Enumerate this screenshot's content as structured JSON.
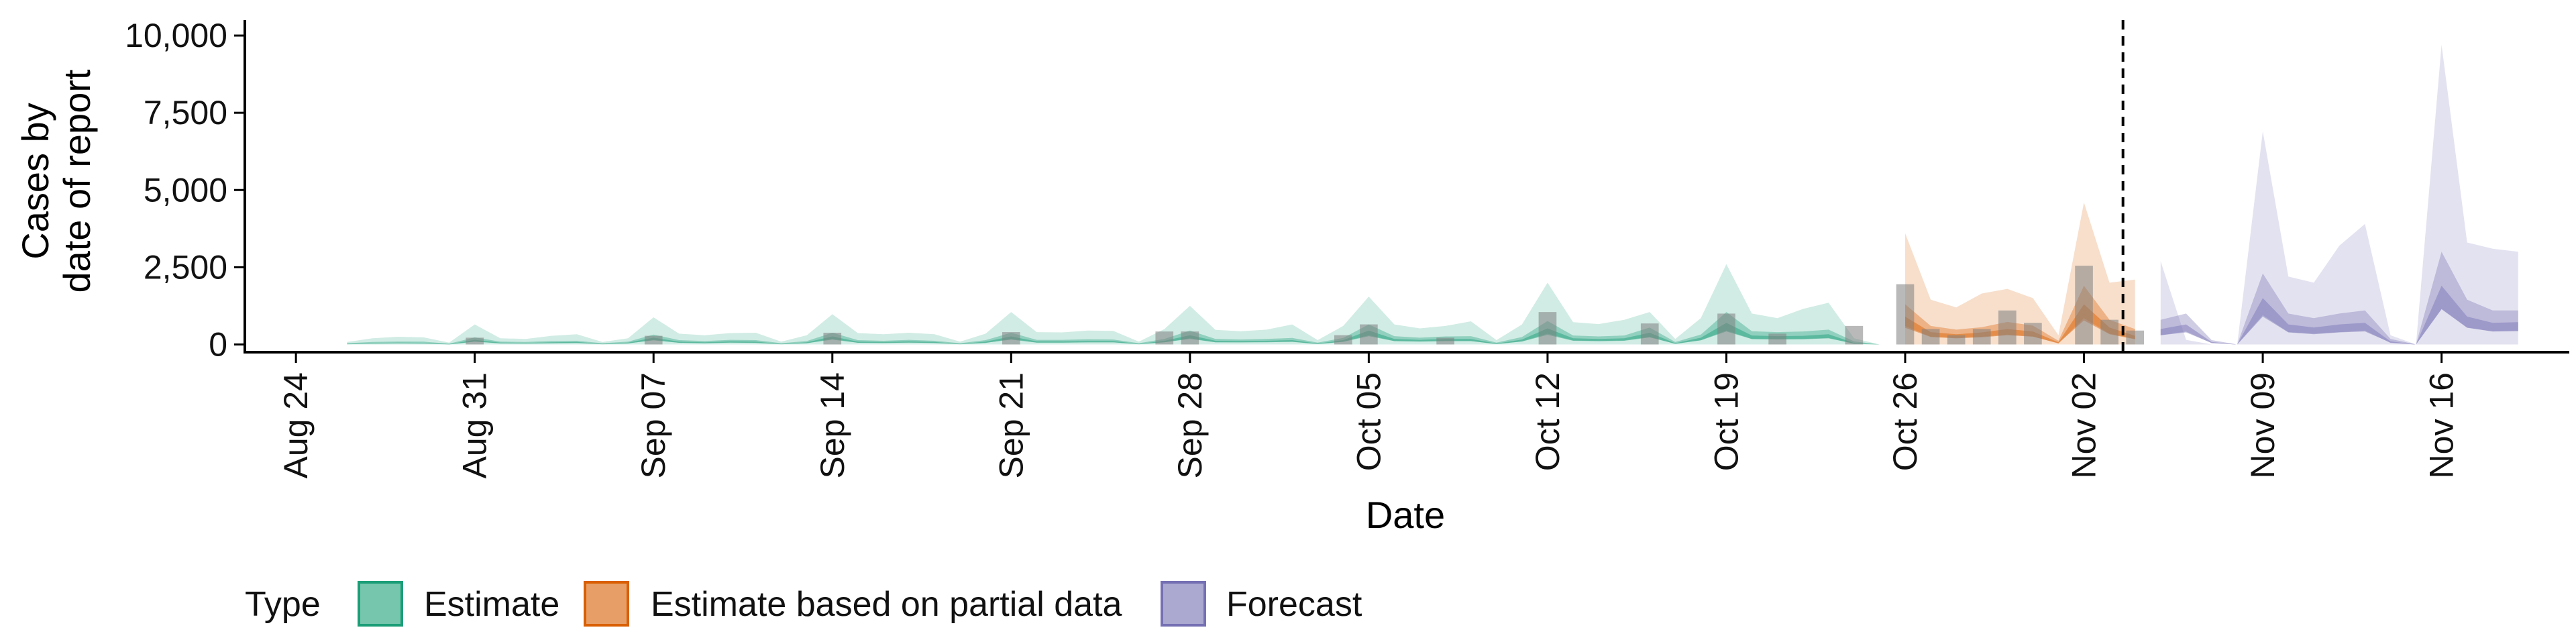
{
  "chart_data": {
    "type": "area",
    "xlabel": "Date",
    "ylabel_lines": [
      "Cases by",
      "date of report"
    ],
    "ylim": [
      -250,
      10500
    ],
    "y_ticks": [
      0,
      2500,
      5000,
      7500,
      10000
    ],
    "y_tick_labels": [
      "0",
      "2,500",
      "5,000",
      "7,500",
      "10,000"
    ],
    "x_start": "2020-08-24",
    "x_ticks": [
      "2020-08-24",
      "2020-08-31",
      "2020-09-07",
      "2020-09-14",
      "2020-09-21",
      "2020-09-28",
      "2020-10-05",
      "2020-10-12",
      "2020-10-19",
      "2020-10-26",
      "2020-11-02",
      "2020-11-09",
      "2020-11-16"
    ],
    "x_tick_labels": [
      "Aug 24",
      "Aug 31",
      "Sep 07",
      "Sep 14",
      "Sep 21",
      "Sep 28",
      "Oct 05",
      "Oct 12",
      "Oct 19",
      "Oct 26",
      "Nov 02",
      "Nov 09",
      "Nov 16"
    ],
    "xlim": [
      "2020-08-22",
      "2020-11-21"
    ],
    "forecast_start": "2020-11-04",
    "legend": {
      "title": "Type",
      "position": "bottom",
      "items": [
        {
          "label": "Estimate",
          "color": "#1b9e77"
        },
        {
          "label": "Estimate based on partial data",
          "color": "#d95f02"
        },
        {
          "label": "Forecast",
          "color": "#7570b3"
        }
      ]
    },
    "series": {
      "dates": [
        "2020-08-26",
        "2020-08-27",
        "2020-08-28",
        "2020-08-29",
        "2020-08-30",
        "2020-08-31",
        "2020-09-01",
        "2020-09-02",
        "2020-09-03",
        "2020-09-04",
        "2020-09-05",
        "2020-09-06",
        "2020-09-07",
        "2020-09-08",
        "2020-09-09",
        "2020-09-10",
        "2020-09-11",
        "2020-09-12",
        "2020-09-13",
        "2020-09-14",
        "2020-09-15",
        "2020-09-16",
        "2020-09-17",
        "2020-09-18",
        "2020-09-19",
        "2020-09-20",
        "2020-09-21",
        "2020-09-22",
        "2020-09-23",
        "2020-09-24",
        "2020-09-25",
        "2020-09-26",
        "2020-09-27",
        "2020-09-28",
        "2020-09-29",
        "2020-09-30",
        "2020-10-01",
        "2020-10-02",
        "2020-10-03",
        "2020-10-04",
        "2020-10-05",
        "2020-10-06",
        "2020-10-07",
        "2020-10-08",
        "2020-10-09",
        "2020-10-10",
        "2020-10-11",
        "2020-10-12",
        "2020-10-13",
        "2020-10-14",
        "2020-10-15",
        "2020-10-16",
        "2020-10-17",
        "2020-10-18",
        "2020-10-19",
        "2020-10-20",
        "2020-10-21",
        "2020-10-22",
        "2020-10-23",
        "2020-10-24",
        "2020-10-25",
        "2020-10-26",
        "2020-10-27",
        "2020-10-28",
        "2020-10-29",
        "2020-10-30",
        "2020-10-31",
        "2020-11-01",
        "2020-11-02",
        "2020-11-03",
        "2020-11-04",
        "2020-11-05",
        "2020-11-06",
        "2020-11-07",
        "2020-11-08",
        "2020-11-09",
        "2020-11-10",
        "2020-11-11",
        "2020-11-12",
        "2020-11-13",
        "2020-11-14",
        "2020-11-15",
        "2020-11-16",
        "2020-11-17",
        "2020-11-18",
        "2020-11-19"
      ],
      "type_index": [
        0,
        0,
        0,
        0,
        0,
        0,
        0,
        0,
        0,
        0,
        0,
        0,
        0,
        0,
        0,
        0,
        0,
        0,
        0,
        0,
        0,
        0,
        0,
        0,
        0,
        0,
        0,
        0,
        0,
        0,
        0,
        0,
        0,
        0,
        0,
        0,
        0,
        0,
        0,
        0,
        0,
        0,
        0,
        0,
        0,
        0,
        0,
        0,
        0,
        0,
        0,
        0,
        0,
        0,
        0,
        0,
        0,
        0,
        0,
        0,
        0,
        1,
        1,
        1,
        1,
        1,
        1,
        1,
        1,
        1,
        1,
        2,
        2,
        2,
        2,
        2,
        2,
        2,
        2,
        2,
        2,
        2,
        2,
        2,
        2,
        2
      ],
      "median": [
        20,
        50,
        60,
        55,
        10,
        150,
        60,
        50,
        70,
        80,
        20,
        60,
        220,
        90,
        70,
        100,
        90,
        20,
        70,
        260,
        90,
        80,
        100,
        80,
        20,
        90,
        260,
        100,
        100,
        110,
        110,
        20,
        120,
        300,
        120,
        110,
        120,
        140,
        30,
        140,
        450,
        180,
        150,
        180,
        180,
        30,
        160,
        520,
        200,
        180,
        200,
        380,
        40,
        220,
        700,
        290,
        270,
        280,
        330,
        50,
        0,
        900,
        400,
        330,
        390,
        500,
        420,
        70,
        1300,
        550,
        280,
        500,
        650,
        80,
        0,
        1500,
        650,
        550,
        650,
        700,
        100,
        0,
        1900,
        900,
        700,
        720
      ],
      "p25": [
        5,
        25,
        35,
        30,
        0,
        90,
        35,
        30,
        40,
        50,
        5,
        30,
        150,
        55,
        40,
        60,
        50,
        5,
        40,
        180,
        55,
        50,
        60,
        50,
        5,
        50,
        180,
        60,
        60,
        70,
        70,
        5,
        70,
        200,
        70,
        70,
        80,
        90,
        10,
        90,
        300,
        110,
        100,
        110,
        110,
        10,
        100,
        350,
        130,
        110,
        130,
        250,
        15,
        140,
        450,
        180,
        170,
        180,
        210,
        20,
        0,
        600,
        250,
        210,
        250,
        320,
        260,
        30,
        850,
        350,
        180,
        300,
        420,
        40,
        0,
        950,
        400,
        350,
        400,
        450,
        50,
        0,
        1150,
        550,
        420,
        440
      ],
      "p75": [
        40,
        80,
        95,
        90,
        25,
        230,
        90,
        80,
        110,
        120,
        40,
        90,
        320,
        140,
        110,
        150,
        140,
        40,
        110,
        380,
        140,
        120,
        150,
        120,
        40,
        140,
        380,
        150,
        150,
        170,
        160,
        40,
        180,
        450,
        180,
        160,
        180,
        210,
        60,
        210,
        650,
        270,
        220,
        260,
        270,
        60,
        240,
        760,
        290,
        260,
        290,
        550,
        80,
        320,
        1050,
        430,
        400,
        420,
        480,
        100,
        0,
        1300,
        600,
        480,
        560,
        730,
        610,
        120,
        1900,
        800,
        500,
        800,
        1000,
        140,
        0,
        2300,
        1000,
        850,
        1000,
        1100,
        180,
        0,
        3000,
        1450,
        1100,
        1100
      ],
      "p95": [
        80,
        200,
        250,
        230,
        60,
        650,
        200,
        180,
        280,
        330,
        80,
        200,
        880,
        350,
        300,
        370,
        380,
        90,
        300,
        980,
        370,
        330,
        380,
        330,
        90,
        350,
        1050,
        400,
        390,
        450,
        440,
        90,
        500,
        1250,
        470,
        430,
        480,
        650,
        140,
        600,
        1550,
        650,
        520,
        600,
        750,
        140,
        650,
        2000,
        720,
        660,
        800,
        1050,
        180,
        850,
        2600,
        1000,
        850,
        1150,
        1350,
        200,
        0,
        3600,
        1450,
        1200,
        1650,
        1800,
        1500,
        300,
        4600,
        2000,
        2100,
        2700,
        150,
        0,
        0,
        6900,
        2200,
        2000,
        3200,
        3900,
        300,
        0,
        9700,
        3300,
        3100,
        3000
      ],
      "reported": [
        0,
        0,
        0,
        0,
        0,
        220,
        0,
        0,
        0,
        0,
        0,
        0,
        280,
        0,
        0,
        0,
        0,
        0,
        0,
        380,
        0,
        0,
        0,
        0,
        0,
        0,
        400,
        0,
        0,
        0,
        0,
        0,
        420,
        420,
        0,
        0,
        0,
        0,
        0,
        300,
        650,
        0,
        0,
        220,
        0,
        0,
        0,
        1050,
        0,
        0,
        0,
        680,
        0,
        0,
        1000,
        0,
        350,
        0,
        0,
        600,
        0,
        1950,
        500,
        300,
        500,
        1100,
        700,
        0,
        2550,
        800,
        450,
        0,
        0,
        0,
        0,
        0,
        0,
        0,
        0,
        0,
        0,
        0,
        0,
        0,
        0,
        0
      ]
    }
  }
}
